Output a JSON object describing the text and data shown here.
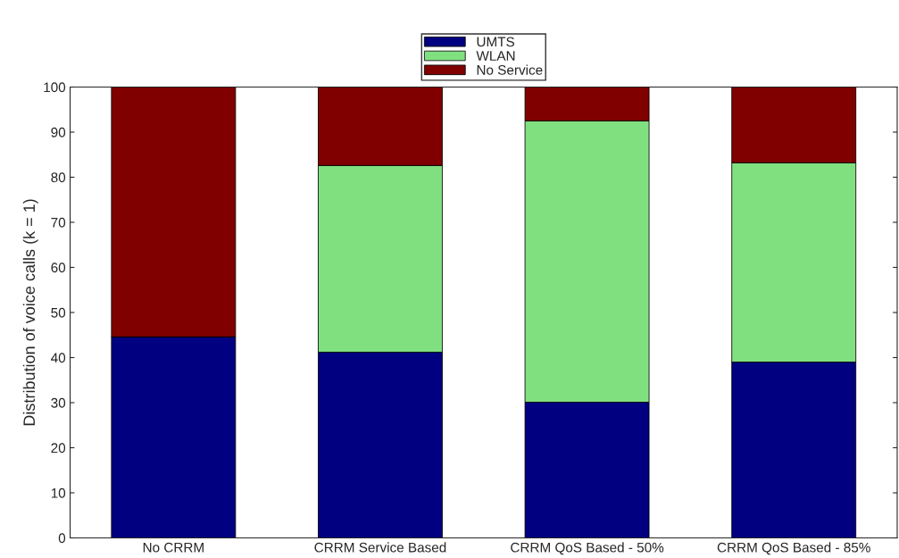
{
  "chart_data": {
    "type": "bar",
    "stacked": true,
    "ylabel": "Distribution of voice calls (k = 1)",
    "categories": [
      "No CRRM",
      "CRRM Service Based",
      "CRRM QoS Based - 50%",
      "CRRM QoS Based - 85%"
    ],
    "series": [
      {
        "name": "UMTS",
        "color": "#000080",
        "values": [
          44.6,
          41.2,
          30.1,
          39.0
        ]
      },
      {
        "name": "WLAN",
        "color": "#80e080",
        "values": [
          0,
          41.4,
          62.4,
          44.2
        ]
      },
      {
        "name": "No Service",
        "color": "#800000",
        "values": [
          55.4,
          17.4,
          7.5,
          16.8
        ]
      }
    ],
    "ylim": [
      0,
      100
    ],
    "yticks": [
      0,
      10,
      20,
      30,
      40,
      50,
      60,
      70,
      80,
      90,
      100
    ],
    "grid": false,
    "legend": "top"
  }
}
